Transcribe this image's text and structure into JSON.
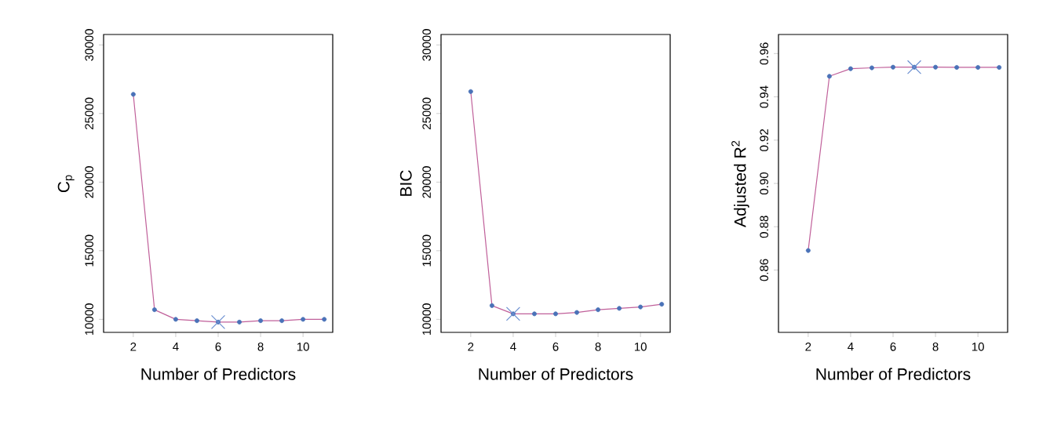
{
  "chart_data": [
    {
      "type": "line",
      "xlabel": "Number of Predictors",
      "ylabel": "C$_{p}$",
      "x": [
        2,
        3,
        4,
        5,
        6,
        7,
        8,
        9,
        10,
        11
      ],
      "xlim": [
        0.6,
        11.4
      ],
      "ylim": [
        9050,
        30760
      ],
      "xticks": [
        2,
        4,
        6,
        8,
        10
      ],
      "yticks": [
        10000,
        15000,
        20000,
        25000,
        30000
      ],
      "grid": false,
      "series": [
        {
          "color": "#c0609a",
          "marker": "none",
          "values": [
            26400,
            10700,
            10000,
            9900,
            9800,
            9800,
            9900,
            9900,
            10000,
            10000
          ]
        },
        {
          "type": "scatter",
          "color": "#4a72b8",
          "marker": "circle",
          "values": [
            26400,
            10700,
            10000,
            9900,
            9800,
            9800,
            9900,
            9900,
            10000,
            10000
          ]
        },
        {
          "type": "scatter",
          "color": "#6a8ed0",
          "marker": "cross",
          "x": [
            6
          ],
          "values": [
            9800
          ]
        }
      ]
    },
    {
      "type": "line",
      "xlabel": "Number of Predictors",
      "ylabel": "BIC",
      "x": [
        2,
        3,
        4,
        5,
        6,
        7,
        8,
        9,
        10,
        11
      ],
      "xlim": [
        0.6,
        11.4
      ],
      "ylim": [
        9050,
        30760
      ],
      "xticks": [
        2,
        4,
        6,
        8,
        10
      ],
      "yticks": [
        10000,
        15000,
        20000,
        25000,
        30000
      ],
      "grid": false,
      "series": [
        {
          "color": "#c0609a",
          "marker": "none",
          "values": [
            26600,
            11000,
            10400,
            10400,
            10400,
            10500,
            10700,
            10800,
            10900,
            11100
          ]
        },
        {
          "type": "scatter",
          "color": "#4a72b8",
          "marker": "circle",
          "values": [
            26600,
            11000,
            10400,
            10400,
            10400,
            10500,
            10700,
            10800,
            10900,
            11100
          ]
        },
        {
          "type": "scatter",
          "color": "#6a8ed0",
          "marker": "cross",
          "x": [
            4
          ],
          "values": [
            10400
          ]
        }
      ]
    },
    {
      "type": "line",
      "xlabel": "Number of Predictors",
      "ylabel": "Adjusted R$^{2}$",
      "x": [
        2,
        3,
        4,
        5,
        6,
        7,
        8,
        9,
        10,
        11
      ],
      "xlim": [
        0.6,
        11.4
      ],
      "ylim": [
        0.8312,
        0.9688
      ],
      "xticks": [
        2,
        4,
        6,
        8,
        10
      ],
      "yticks": [
        {
          "value": 0.86,
          "label": "0.86"
        },
        {
          "value": 0.88,
          "label": "0.88"
        },
        {
          "value": 0.9,
          "label": "0.90"
        },
        {
          "value": 0.92,
          "label": "0.92"
        },
        {
          "value": 0.94,
          "label": "0.94"
        },
        {
          "value": 0.96,
          "label": "0.96"
        }
      ],
      "grid": false,
      "series": [
        {
          "color": "#c0609a",
          "marker": "none",
          "values": [
            0.869,
            0.9495,
            0.953,
            0.9534,
            0.9537,
            0.9537,
            0.9537,
            0.9536,
            0.9536,
            0.9536
          ]
        },
        {
          "type": "scatter",
          "color": "#4a72b8",
          "marker": "circle",
          "values": [
            0.869,
            0.9495,
            0.953,
            0.9534,
            0.9537,
            0.9537,
            0.9537,
            0.9536,
            0.9536,
            0.9536
          ]
        },
        {
          "type": "scatter",
          "color": "#6a8ed0",
          "marker": "cross",
          "x": [
            7
          ],
          "values": [
            0.9537
          ]
        }
      ]
    }
  ]
}
